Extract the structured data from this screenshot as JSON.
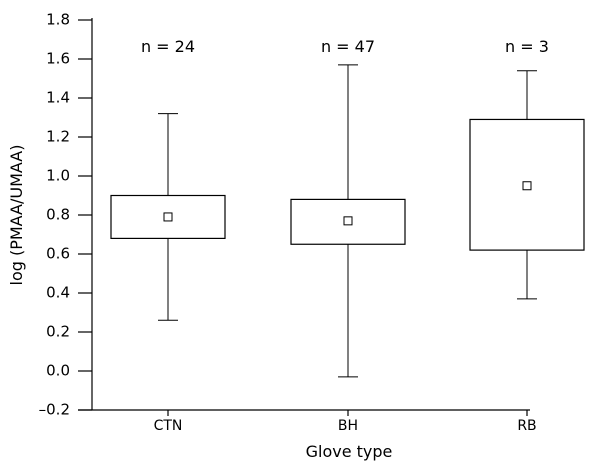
{
  "chart_data": {
    "type": "box",
    "xlabel": "Glove type",
    "ylabel": "log (PMAA/UMAA)",
    "ylim": [
      -0.2,
      1.8
    ],
    "yticks": [
      -0.2,
      0.0,
      0.2,
      0.4,
      0.6,
      0.8,
      1.0,
      1.2,
      1.4,
      1.6,
      1.8
    ],
    "ytick_labels": [
      "–0.2",
      "0.0",
      "0.2",
      "0.4",
      "0.6",
      "0.8",
      "1.0",
      "1.2",
      "1.4",
      "1.6",
      "1.8"
    ],
    "categories": [
      "CTN",
      "BH",
      "RB"
    ],
    "groups": [
      {
        "category": "CTN",
        "n_label": "n = 24",
        "min": 0.26,
        "q1": 0.68,
        "mean": 0.79,
        "q3": 0.9,
        "max": 1.32
      },
      {
        "category": "BH",
        "n_label": "n = 47",
        "min": -0.03,
        "q1": 0.65,
        "mean": 0.77,
        "q3": 0.88,
        "max": 1.57
      },
      {
        "category": "RB",
        "n_label": "n = 3",
        "min": 0.37,
        "q1": 0.62,
        "mean": 0.95,
        "q3": 1.29,
        "max": 1.54
      }
    ],
    "grid": false,
    "legend": "none"
  }
}
